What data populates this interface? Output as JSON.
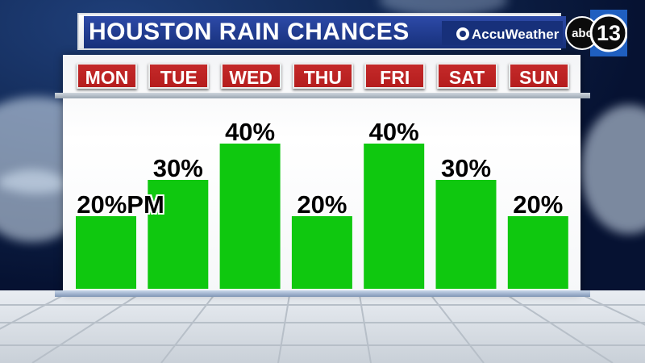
{
  "header": {
    "title": "HOUSTON RAIN CHANCES",
    "sponsor": "AccuWeather",
    "network_logo_text": "abc",
    "channel_number": "13"
  },
  "colors": {
    "bar": "#0fc80f",
    "day_label_bg": "#b51d1d",
    "title_bg": "#1f3c92"
  },
  "chart_data": {
    "type": "bar",
    "categories": [
      "MON",
      "TUE",
      "WED",
      "THU",
      "FRI",
      "SAT",
      "SUN"
    ],
    "values": [
      20,
      30,
      40,
      20,
      40,
      30,
      20
    ],
    "value_labels": [
      "20%PM",
      "30%",
      "40%",
      "20%",
      "40%",
      "30%",
      "20%"
    ],
    "unit": "%",
    "ylim": [
      0,
      100
    ],
    "grid": false,
    "legend": "none"
  }
}
